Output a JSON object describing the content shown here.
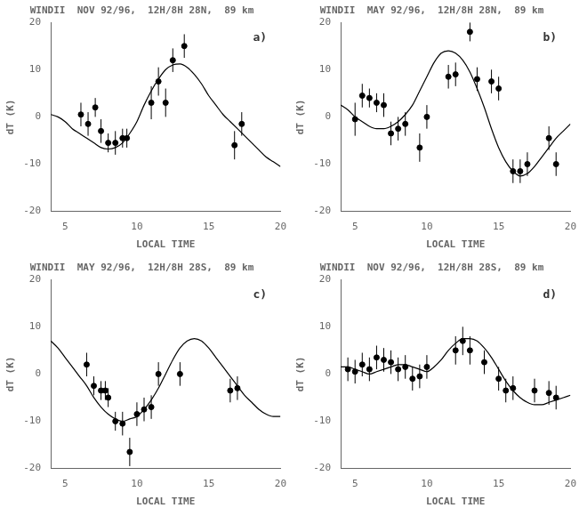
{
  "chart_data": [
    {
      "type": "scatter",
      "title": "WINDII  NOV 92/96,  12H/8H 28N,  89 km",
      "annotation": "a)",
      "xlabel": "LOCAL TIME",
      "ylabel": "dT (K)",
      "xlim": [
        4,
        20
      ],
      "ylim": [
        -20,
        20
      ],
      "xticks": [
        5,
        10,
        15,
        20
      ],
      "yticks": [
        -20,
        -10,
        0,
        10,
        20
      ],
      "grid": false,
      "series": [
        {
          "type": "scatter",
          "marker": "circle",
          "color": "black",
          "x": [
            6.1,
            6.6,
            7.1,
            7.5,
            8.0,
            8.5,
            9.0,
            9.3,
            11.0,
            11.5,
            12.0,
            12.5,
            13.3,
            16.8,
            17.3
          ],
          "values": [
            0.5,
            -1.5,
            2.0,
            -3.0,
            -5.5,
            -5.5,
            -4.5,
            -4.5,
            3.0,
            7.5,
            3.0,
            12.0,
            15.0,
            -6.0,
            -1.5
          ],
          "errors": [
            2.5,
            2.5,
            2.0,
            2.5,
            2.0,
            2.5,
            2.0,
            2.0,
            3.5,
            3.0,
            3.0,
            2.5,
            2.5,
            3.0,
            2.5
          ]
        },
        {
          "type": "line",
          "line_style": "solid",
          "color": "black",
          "x": [
            4.0,
            4.5,
            5.0,
            5.5,
            6.0,
            6.5,
            7.0,
            7.5,
            8.0,
            8.5,
            9.0,
            9.5,
            10.0,
            10.5,
            11.0,
            11.5,
            12.0,
            12.5,
            13.0,
            13.5,
            14.0,
            14.5,
            15.0,
            15.5,
            16.0,
            16.5,
            17.0,
            17.5,
            18.0,
            18.5,
            19.0,
            19.5,
            20.0
          ],
          "values": [
            0.5,
            0.0,
            -1.0,
            -2.5,
            -3.5,
            -4.5,
            -5.5,
            -6.5,
            -6.8,
            -6.5,
            -5.5,
            -3.5,
            -1.0,
            2.5,
            5.5,
            8.0,
            10.0,
            11.0,
            11.2,
            10.5,
            9.0,
            7.0,
            4.5,
            2.5,
            0.5,
            -1.0,
            -2.5,
            -4.0,
            -5.5,
            -7.0,
            -8.5,
            -9.5,
            -10.5
          ]
        }
      ]
    },
    {
      "type": "scatter",
      "title": "WINDII  MAY 92/96,  12H/8H 28N,  89 km",
      "annotation": "b)",
      "xlabel": "LOCAL TIME",
      "ylabel": "dT (K)",
      "xlim": [
        4,
        20
      ],
      "ylim": [
        -20,
        20
      ],
      "xticks": [
        5,
        10,
        15,
        20
      ],
      "yticks": [
        -20,
        -10,
        0,
        10,
        20
      ],
      "grid": false,
      "series": [
        {
          "type": "scatter",
          "marker": "circle",
          "color": "black",
          "x": [
            5.0,
            5.5,
            6.0,
            6.5,
            7.0,
            7.5,
            8.0,
            8.5,
            9.5,
            10.0,
            11.5,
            12.0,
            13.0,
            13.5,
            14.5,
            15.0,
            16.0,
            16.5,
            17.0,
            18.5,
            19.0
          ],
          "values": [
            -0.5,
            4.5,
            4.0,
            3.0,
            2.5,
            -3.5,
            -2.5,
            -1.5,
            -6.5,
            0.0,
            8.5,
            9.0,
            18.0,
            8.0,
            7.5,
            6.0,
            -11.5,
            -11.5,
            -10.0,
            -4.5,
            -10.0
          ],
          "errors": [
            3.5,
            2.5,
            2.0,
            2.0,
            2.5,
            2.5,
            2.5,
            2.5,
            3.0,
            2.5,
            2.5,
            2.5,
            2.0,
            2.5,
            2.5,
            2.5,
            2.5,
            2.5,
            2.5,
            2.5,
            2.5
          ]
        },
        {
          "type": "line",
          "line_style": "solid",
          "color": "black",
          "x": [
            4.0,
            4.5,
            5.0,
            5.5,
            6.0,
            6.5,
            7.0,
            7.5,
            8.0,
            8.5,
            9.0,
            9.5,
            10.0,
            10.5,
            11.0,
            11.5,
            12.0,
            12.5,
            13.0,
            13.5,
            14.0,
            14.5,
            15.0,
            15.5,
            16.0,
            16.5,
            17.0,
            17.5,
            18.0,
            18.5,
            19.0,
            19.5,
            20.0
          ],
          "values": [
            2.5,
            1.5,
            0.0,
            -1.0,
            -2.0,
            -2.5,
            -2.5,
            -2.0,
            -1.0,
            0.5,
            2.5,
            5.5,
            8.5,
            11.5,
            13.5,
            14.0,
            13.5,
            12.0,
            9.5,
            6.0,
            2.0,
            -2.5,
            -6.5,
            -9.5,
            -11.5,
            -12.5,
            -12.0,
            -10.5,
            -8.5,
            -6.5,
            -4.5,
            -3.0,
            -1.5
          ]
        }
      ]
    },
    {
      "type": "scatter",
      "title": "WINDII  MAY 92/96,  12H/8H 28S,  89 km",
      "annotation": "c)",
      "xlabel": "LOCAL TIME",
      "ylabel": "dT (K)",
      "xlim": [
        4,
        20
      ],
      "ylim": [
        -20,
        20
      ],
      "xticks": [
        5,
        10,
        15,
        20
      ],
      "yticks": [
        -20,
        -10,
        0,
        10,
        20
      ],
      "grid": false,
      "series": [
        {
          "type": "scatter",
          "marker": "circle",
          "color": "black",
          "x": [
            6.5,
            7.0,
            7.5,
            7.8,
            8.0,
            8.5,
            9.0,
            9.5,
            10.0,
            10.5,
            11.0,
            11.5,
            13.0,
            16.5,
            17.0
          ],
          "values": [
            2.0,
            -2.5,
            -3.5,
            -3.5,
            -5.0,
            -10.0,
            -10.5,
            -16.5,
            -8.5,
            -7.5,
            -7.0,
            0.0,
            0.0,
            -3.5,
            -3.0
          ],
          "errors": [
            2.5,
            2.0,
            2.0,
            2.0,
            2.0,
            2.0,
            2.5,
            3.0,
            2.5,
            2.5,
            2.5,
            2.5,
            2.5,
            2.5,
            2.5
          ]
        },
        {
          "type": "line",
          "line_style": "solid",
          "color": "black",
          "x": [
            4.0,
            4.5,
            5.0,
            5.5,
            6.0,
            6.5,
            7.0,
            7.5,
            8.0,
            8.5,
            9.0,
            9.5,
            10.0,
            10.5,
            11.0,
            11.5,
            12.0,
            12.5,
            13.0,
            13.5,
            14.0,
            14.5,
            15.0,
            15.5,
            16.0,
            16.5,
            17.0,
            17.5,
            18.0,
            18.5,
            19.0,
            19.5,
            20.0
          ],
          "values": [
            7.0,
            5.5,
            3.5,
            1.5,
            -0.5,
            -2.5,
            -5.0,
            -7.0,
            -8.5,
            -9.5,
            -10.0,
            -9.5,
            -9.0,
            -7.5,
            -5.5,
            -3.0,
            0.0,
            3.0,
            5.5,
            7.0,
            7.5,
            7.0,
            5.5,
            3.5,
            1.5,
            -0.5,
            -2.5,
            -4.5,
            -6.0,
            -7.5,
            -8.5,
            -9.0,
            -9.0
          ]
        }
      ]
    },
    {
      "type": "scatter",
      "title": "WINDII  NOV 92/96,  12H/8H 28S,  89 km",
      "annotation": "d)",
      "xlabel": "LOCAL TIME",
      "ylabel": "dT (K)",
      "xlim": [
        4,
        20
      ],
      "ylim": [
        -20,
        20
      ],
      "xticks": [
        5,
        10,
        15,
        20
      ],
      "yticks": [
        -20,
        -10,
        0,
        10,
        20
      ],
      "grid": false,
      "series": [
        {
          "type": "scatter",
          "marker": "circle",
          "color": "black",
          "x": [
            4.5,
            5.0,
            5.5,
            6.0,
            6.5,
            7.0,
            7.5,
            8.0,
            8.5,
            9.0,
            9.5,
            10.0,
            12.0,
            12.5,
            13.0,
            14.0,
            15.0,
            15.5,
            16.0,
            17.5,
            18.5,
            19.0
          ],
          "values": [
            1.0,
            0.5,
            2.0,
            1.0,
            3.5,
            3.0,
            2.5,
            1.0,
            1.5,
            -1.0,
            -0.5,
            1.5,
            5.0,
            7.0,
            5.0,
            2.5,
            -1.0,
            -3.5,
            -3.0,
            -3.5,
            -4.0,
            -5.0
          ],
          "errors": [
            2.5,
            2.5,
            2.5,
            2.5,
            2.5,
            2.5,
            2.5,
            2.5,
            2.5,
            2.5,
            2.5,
            2.5,
            3.0,
            3.0,
            3.0,
            2.5,
            2.5,
            2.5,
            2.5,
            2.5,
            2.5,
            2.5
          ]
        },
        {
          "type": "line",
          "line_style": "solid",
          "color": "black",
          "x": [
            4.0,
            4.5,
            5.0,
            5.5,
            6.0,
            6.5,
            7.0,
            7.5,
            8.0,
            8.5,
            9.0,
            9.5,
            10.0,
            10.5,
            11.0,
            11.5,
            12.0,
            12.5,
            13.0,
            13.5,
            14.0,
            14.5,
            15.0,
            15.5,
            16.0,
            16.5,
            17.0,
            17.5,
            18.0,
            18.5,
            19.0,
            19.5,
            20.0
          ],
          "values": [
            1.5,
            1.5,
            1.0,
            0.5,
            0.0,
            0.5,
            1.0,
            1.5,
            2.0,
            2.0,
            1.5,
            1.0,
            0.5,
            1.5,
            3.0,
            5.0,
            6.5,
            7.5,
            7.5,
            7.0,
            5.5,
            3.5,
            1.0,
            -1.5,
            -3.5,
            -5.0,
            -6.0,
            -6.5,
            -6.5,
            -6.0,
            -5.5,
            -5.0,
            -4.5
          ]
        }
      ]
    }
  ]
}
